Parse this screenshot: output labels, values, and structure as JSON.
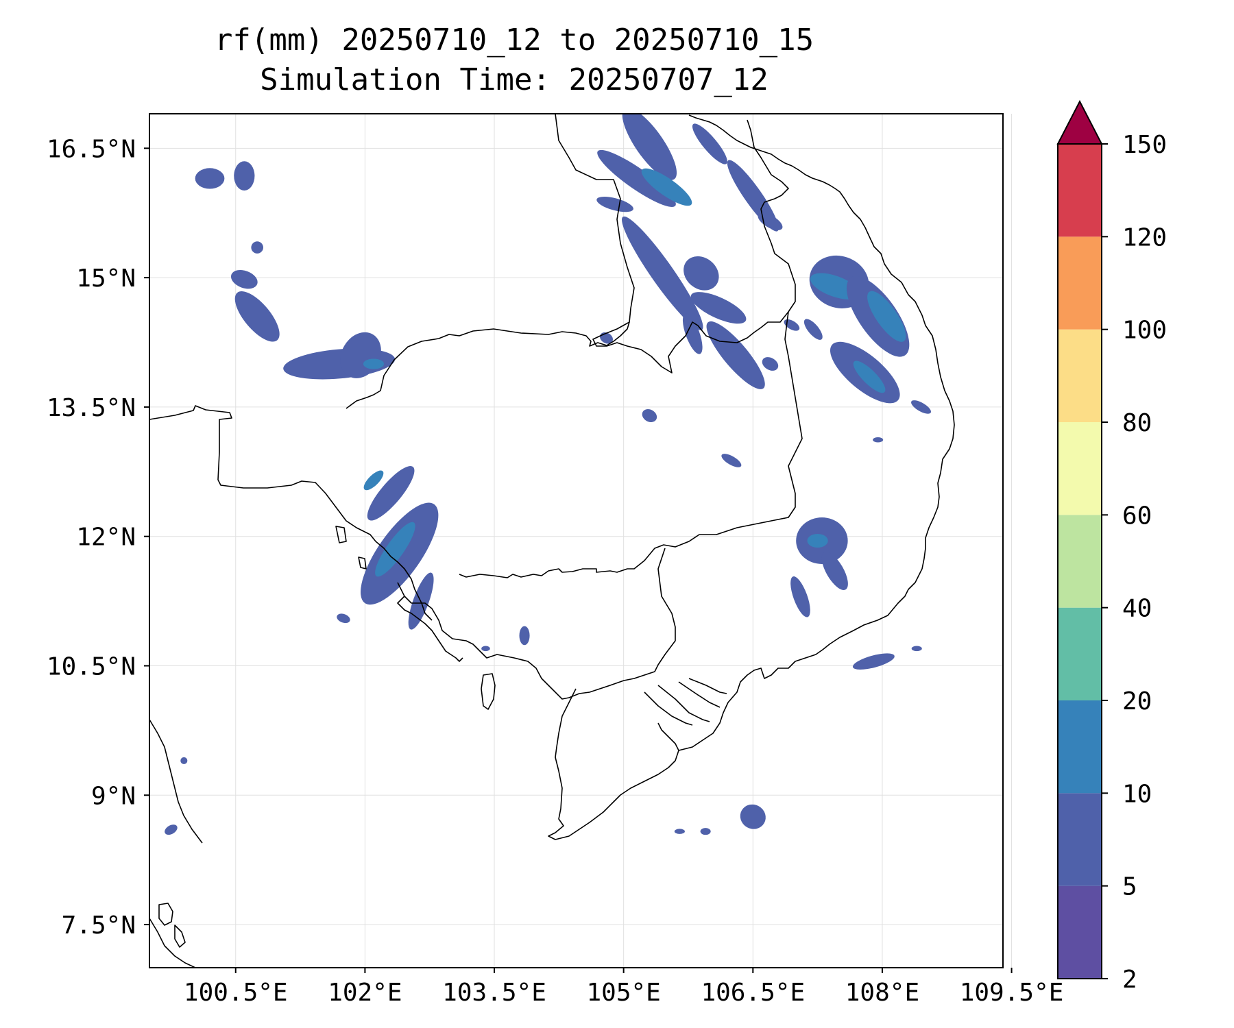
{
  "title_line1": "rf(mm) 20250710_12 to 20250710_15",
  "title_line2": "Simulation Time: 20250707_12",
  "map": {
    "extent": {
      "lon_min": 99.5,
      "lon_max": 109.4,
      "lat_min": 7.0,
      "lat_max": 16.9
    },
    "lon_ticks": [
      100.5,
      102,
      103.5,
      105,
      106.5,
      108,
      109.5
    ],
    "lon_tick_labels": [
      "100.5°E",
      "102°E",
      "103.5°E",
      "105°E",
      "106.5°E",
      "108°E",
      "109.5°E"
    ],
    "lat_ticks": [
      16.5,
      15,
      13.5,
      12,
      10.5,
      9,
      7.5
    ],
    "lat_tick_labels": [
      "16.5°N",
      "15°N",
      "13.5°N",
      "12°N",
      "10.5°N",
      "9°N",
      "7.5°N"
    ],
    "gridlines": true,
    "coastline_color": "#000000"
  },
  "colorbar": {
    "levels": [
      2,
      5,
      10,
      20,
      40,
      60,
      80,
      100,
      120,
      150
    ],
    "labels": [
      "2",
      "5",
      "10",
      "20",
      "40",
      "60",
      "80",
      "100",
      "120",
      "150"
    ],
    "colors": [
      "#5e4fa2",
      "#4f61aa",
      "#3682ba",
      "#62bea6",
      "#bde4a0",
      "#f3faad",
      "#fcdd87",
      "#f99c58",
      "#d73e4e"
    ],
    "extend_color": "#9e0142",
    "extend": "max"
  },
  "chart_data": {
    "type": "heatmap",
    "title": "rf(mm) 20250710_12 to 20250710_15",
    "subtitle": "Simulation Time: 20250707_12",
    "variable": "rf(mm)",
    "xlim": [
      99.5,
      109.4
    ],
    "ylim": [
      7.0,
      16.9
    ],
    "rain_cells": [
      {
        "lon": 100.2,
        "lat": 16.15,
        "rx": 0.17,
        "ry": 0.12,
        "rot": 0,
        "level": 1
      },
      {
        "lon": 100.6,
        "lat": 16.18,
        "rx": 0.12,
        "ry": 0.17,
        "rot": 0,
        "level": 1
      },
      {
        "lon": 100.75,
        "lat": 15.35,
        "rx": 0.07,
        "ry": 0.07,
        "rot": 0,
        "level": 1
      },
      {
        "lon": 100.6,
        "lat": 14.98,
        "rx": 0.16,
        "ry": 0.1,
        "rot": 20,
        "level": 1
      },
      {
        "lon": 100.75,
        "lat": 14.55,
        "rx": 0.36,
        "ry": 0.15,
        "rot": 50,
        "level": 1
      },
      {
        "lon": 101.7,
        "lat": 14.0,
        "rx": 0.65,
        "ry": 0.17,
        "rot": -5,
        "level": 1
      },
      {
        "lon": 101.95,
        "lat": 14.1,
        "rx": 0.22,
        "ry": 0.28,
        "rot": 30,
        "level": 1
      },
      {
        "lon": 102.1,
        "lat": 14.0,
        "rx": 0.12,
        "ry": 0.06,
        "rot": 0,
        "level": 2
      },
      {
        "lon": 102.3,
        "lat": 12.5,
        "rx": 0.4,
        "ry": 0.12,
        "rot": -50,
        "level": 1
      },
      {
        "lon": 102.1,
        "lat": 12.65,
        "rx": 0.15,
        "ry": 0.06,
        "rot": -45,
        "level": 2
      },
      {
        "lon": 102.4,
        "lat": 11.8,
        "rx": 0.7,
        "ry": 0.25,
        "rot": -55,
        "level": 1
      },
      {
        "lon": 102.35,
        "lat": 11.85,
        "rx": 0.38,
        "ry": 0.1,
        "rot": -55,
        "level": 2
      },
      {
        "lon": 102.65,
        "lat": 11.25,
        "rx": 0.35,
        "ry": 0.09,
        "rot": -70,
        "level": 1
      },
      {
        "lon": 101.75,
        "lat": 11.05,
        "rx": 0.08,
        "ry": 0.05,
        "rot": 20,
        "level": 1
      },
      {
        "lon": 103.85,
        "lat": 10.85,
        "rx": 0.06,
        "ry": 0.11,
        "rot": 0,
        "level": 1
      },
      {
        "lon": 105.3,
        "lat": 16.55,
        "rx": 0.5,
        "ry": 0.16,
        "rot": 55,
        "level": 1
      },
      {
        "lon": 105.15,
        "lat": 16.15,
        "rx": 0.55,
        "ry": 0.12,
        "rot": 35,
        "level": 1
      },
      {
        "lon": 105.5,
        "lat": 16.05,
        "rx": 0.35,
        "ry": 0.1,
        "rot": 35,
        "level": 2
      },
      {
        "lon": 104.9,
        "lat": 15.85,
        "rx": 0.22,
        "ry": 0.07,
        "rot": 15,
        "level": 1
      },
      {
        "lon": 106.0,
        "lat": 16.55,
        "rx": 0.3,
        "ry": 0.08,
        "rot": 50,
        "level": 1
      },
      {
        "lon": 106.5,
        "lat": 15.95,
        "rx": 0.5,
        "ry": 0.1,
        "rot": 55,
        "level": 1
      },
      {
        "lon": 105.45,
        "lat": 15.05,
        "rx": 0.8,
        "ry": 0.13,
        "rot": 55,
        "level": 1
      },
      {
        "lon": 105.9,
        "lat": 15.05,
        "rx": 0.22,
        "ry": 0.18,
        "rot": 40,
        "level": 1
      },
      {
        "lon": 106.1,
        "lat": 14.65,
        "rx": 0.35,
        "ry": 0.12,
        "rot": 25,
        "level": 1
      },
      {
        "lon": 105.8,
        "lat": 14.35,
        "rx": 0.25,
        "ry": 0.08,
        "rot": 70,
        "level": 1
      },
      {
        "lon": 106.3,
        "lat": 14.1,
        "rx": 0.5,
        "ry": 0.14,
        "rot": 50,
        "level": 1
      },
      {
        "lon": 106.7,
        "lat": 15.65,
        "rx": 0.16,
        "ry": 0.07,
        "rot": 30,
        "level": 1
      },
      {
        "lon": 107.5,
        "lat": 14.95,
        "rx": 0.35,
        "ry": 0.3,
        "rot": 20,
        "level": 1
      },
      {
        "lon": 107.45,
        "lat": 14.9,
        "rx": 0.3,
        "ry": 0.12,
        "rot": 20,
        "level": 2
      },
      {
        "lon": 107.95,
        "lat": 14.55,
        "rx": 0.55,
        "ry": 0.22,
        "rot": 55,
        "level": 1
      },
      {
        "lon": 108.05,
        "lat": 14.55,
        "rx": 0.35,
        "ry": 0.12,
        "rot": 55,
        "level": 2
      },
      {
        "lon": 107.8,
        "lat": 13.9,
        "rx": 0.5,
        "ry": 0.2,
        "rot": 40,
        "level": 1
      },
      {
        "lon": 107.85,
        "lat": 13.85,
        "rx": 0.25,
        "ry": 0.08,
        "rot": 45,
        "level": 2
      },
      {
        "lon": 107.2,
        "lat": 14.4,
        "rx": 0.15,
        "ry": 0.06,
        "rot": 50,
        "level": 1
      },
      {
        "lon": 106.95,
        "lat": 14.45,
        "rx": 0.1,
        "ry": 0.05,
        "rot": 30,
        "level": 1
      },
      {
        "lon": 106.7,
        "lat": 14.0,
        "rx": 0.1,
        "ry": 0.07,
        "rot": 30,
        "level": 1
      },
      {
        "lon": 104.8,
        "lat": 14.3,
        "rx": 0.08,
        "ry": 0.06,
        "rot": 30,
        "level": 1
      },
      {
        "lon": 105.3,
        "lat": 13.4,
        "rx": 0.09,
        "ry": 0.07,
        "rot": 30,
        "level": 1
      },
      {
        "lon": 106.25,
        "lat": 12.88,
        "rx": 0.13,
        "ry": 0.05,
        "rot": 30,
        "level": 1
      },
      {
        "lon": 108.45,
        "lat": 13.5,
        "rx": 0.13,
        "ry": 0.05,
        "rot": 30,
        "level": 1
      },
      {
        "lon": 107.95,
        "lat": 13.12,
        "rx": 0.06,
        "ry": 0.03,
        "rot": 0,
        "level": 1
      },
      {
        "lon": 107.3,
        "lat": 11.95,
        "rx": 0.3,
        "ry": 0.27,
        "rot": 0,
        "level": 1
      },
      {
        "lon": 107.25,
        "lat": 11.95,
        "rx": 0.12,
        "ry": 0.08,
        "rot": 0,
        "level": 2
      },
      {
        "lon": 107.45,
        "lat": 11.6,
        "rx": 0.25,
        "ry": 0.1,
        "rot": 60,
        "level": 1
      },
      {
        "lon": 107.05,
        "lat": 11.3,
        "rx": 0.25,
        "ry": 0.08,
        "rot": 70,
        "level": 1
      },
      {
        "lon": 107.9,
        "lat": 10.55,
        "rx": 0.25,
        "ry": 0.07,
        "rot": -15,
        "level": 1
      },
      {
        "lon": 108.4,
        "lat": 10.7,
        "rx": 0.06,
        "ry": 0.03,
        "rot": 0,
        "level": 1
      },
      {
        "lon": 106.5,
        "lat": 8.75,
        "rx": 0.15,
        "ry": 0.14,
        "rot": 30,
        "level": 1
      },
      {
        "lon": 105.65,
        "lat": 8.58,
        "rx": 0.06,
        "ry": 0.03,
        "rot": 0,
        "level": 1
      },
      {
        "lon": 105.95,
        "lat": 8.58,
        "rx": 0.06,
        "ry": 0.04,
        "rot": 0,
        "level": 1
      },
      {
        "lon": 99.75,
        "lat": 8.6,
        "rx": 0.08,
        "ry": 0.05,
        "rot": -30,
        "level": 1
      },
      {
        "lon": 99.9,
        "lat": 9.4,
        "rx": 0.04,
        "ry": 0.04,
        "rot": 0,
        "level": 1
      },
      {
        "lon": 103.4,
        "lat": 10.7,
        "rx": 0.05,
        "ry": 0.03,
        "rot": 0,
        "level": 1
      }
    ]
  }
}
